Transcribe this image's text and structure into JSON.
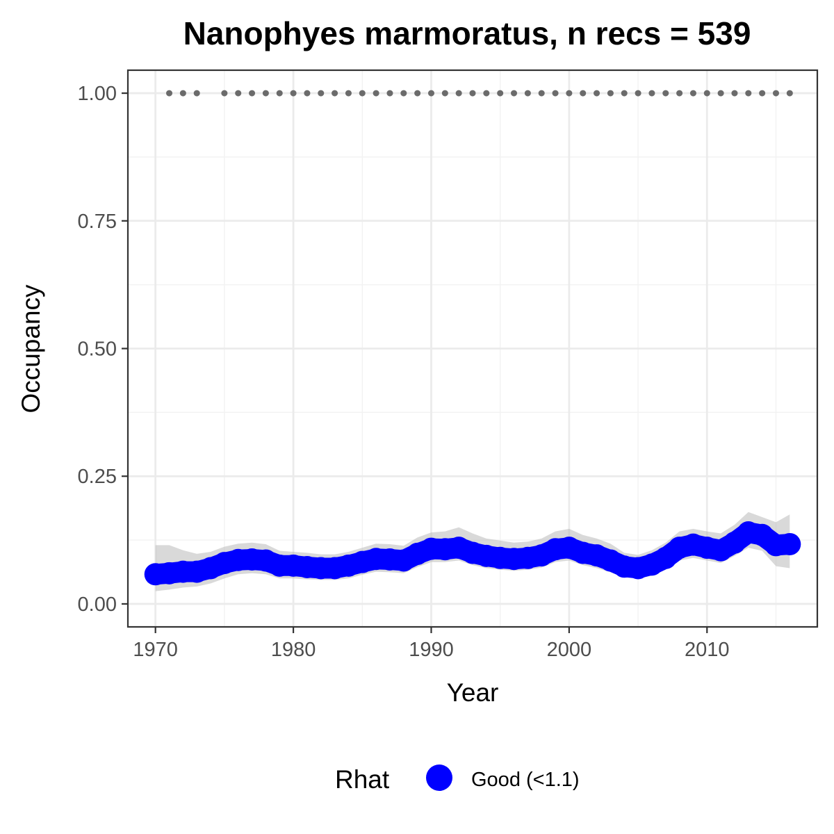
{
  "chart_data": {
    "type": "line",
    "title": "Nanophyes marmoratus, n recs = 539",
    "xlabel": "Year",
    "ylabel": "Occupancy",
    "xlim": [
      1968,
      2018
    ],
    "ylim": [
      -0.045,
      1.045
    ],
    "x_ticks": [
      1970,
      1980,
      1990,
      2000,
      2010
    ],
    "x_tick_labels": [
      "1970",
      "1980",
      "1990",
      "2000",
      "2010"
    ],
    "y_ticks": [
      0,
      0.25,
      0.5,
      0.75,
      1.0
    ],
    "y_tick_labels": [
      "0.00",
      "0.25",
      "0.50",
      "0.75",
      "1.00"
    ],
    "grid": true,
    "legend": {
      "title": "Rhat",
      "position": "bottom",
      "entries": [
        {
          "label": "Good (<1.1)",
          "color": "#0000ff"
        }
      ]
    },
    "series": [
      {
        "name": "Good (<1.1)",
        "color": "#0000ff",
        "x": [
          1970,
          1971,
          1972,
          1973,
          1974,
          1975,
          1976,
          1977,
          1978,
          1979,
          1980,
          1981,
          1982,
          1983,
          1984,
          1985,
          1986,
          1987,
          1988,
          1989,
          1990,
          1991,
          1992,
          1993,
          1994,
          1995,
          1996,
          1997,
          1998,
          1999,
          2000,
          2001,
          2002,
          2003,
          2004,
          2005,
          2006,
          2007,
          2008,
          2009,
          2010,
          2011,
          2012,
          2013,
          2014,
          2015,
          2016
        ],
        "y": [
          0.058,
          0.06,
          0.063,
          0.063,
          0.07,
          0.08,
          0.086,
          0.087,
          0.085,
          0.075,
          0.075,
          0.072,
          0.07,
          0.07,
          0.075,
          0.082,
          0.088,
          0.087,
          0.085,
          0.098,
          0.108,
          0.107,
          0.11,
          0.1,
          0.094,
          0.09,
          0.088,
          0.09,
          0.095,
          0.107,
          0.11,
          0.1,
          0.095,
          0.085,
          0.073,
          0.07,
          0.077,
          0.09,
          0.11,
          0.116,
          0.11,
          0.105,
          0.12,
          0.14,
          0.135,
          0.115,
          0.117
        ],
        "lower": [
          0.025,
          0.028,
          0.032,
          0.034,
          0.04,
          0.05,
          0.058,
          0.06,
          0.058,
          0.05,
          0.05,
          0.048,
          0.047,
          0.047,
          0.05,
          0.057,
          0.063,
          0.062,
          0.06,
          0.072,
          0.082,
          0.082,
          0.085,
          0.076,
          0.07,
          0.067,
          0.065,
          0.067,
          0.071,
          0.082,
          0.085,
          0.076,
          0.07,
          0.062,
          0.052,
          0.05,
          0.055,
          0.067,
          0.085,
          0.09,
          0.085,
          0.08,
          0.094,
          0.11,
          0.104,
          0.074,
          0.07
        ],
        "upper": [
          0.115,
          0.115,
          0.105,
          0.098,
          0.102,
          0.112,
          0.118,
          0.12,
          0.117,
          0.104,
          0.102,
          0.1,
          0.097,
          0.097,
          0.102,
          0.11,
          0.118,
          0.117,
          0.114,
          0.13,
          0.14,
          0.142,
          0.15,
          0.138,
          0.128,
          0.124,
          0.12,
          0.122,
          0.128,
          0.142,
          0.147,
          0.135,
          0.128,
          0.118,
          0.1,
          0.096,
          0.105,
          0.12,
          0.142,
          0.147,
          0.142,
          0.138,
          0.155,
          0.18,
          0.17,
          0.16,
          0.175
        ]
      }
    ],
    "observed_years": {
      "color": "#6b6b6b",
      "y": 1.0,
      "x": [
        1971,
        1972,
        1973,
        1975,
        1976,
        1977,
        1978,
        1979,
        1980,
        1981,
        1982,
        1983,
        1984,
        1985,
        1986,
        1987,
        1988,
        1989,
        1990,
        1991,
        1992,
        1993,
        1994,
        1995,
        1996,
        1997,
        1998,
        1999,
        2000,
        2001,
        2002,
        2003,
        2004,
        2005,
        2006,
        2007,
        2008,
        2009,
        2010,
        2011,
        2012,
        2013,
        2014,
        2015,
        2016
      ]
    }
  }
}
